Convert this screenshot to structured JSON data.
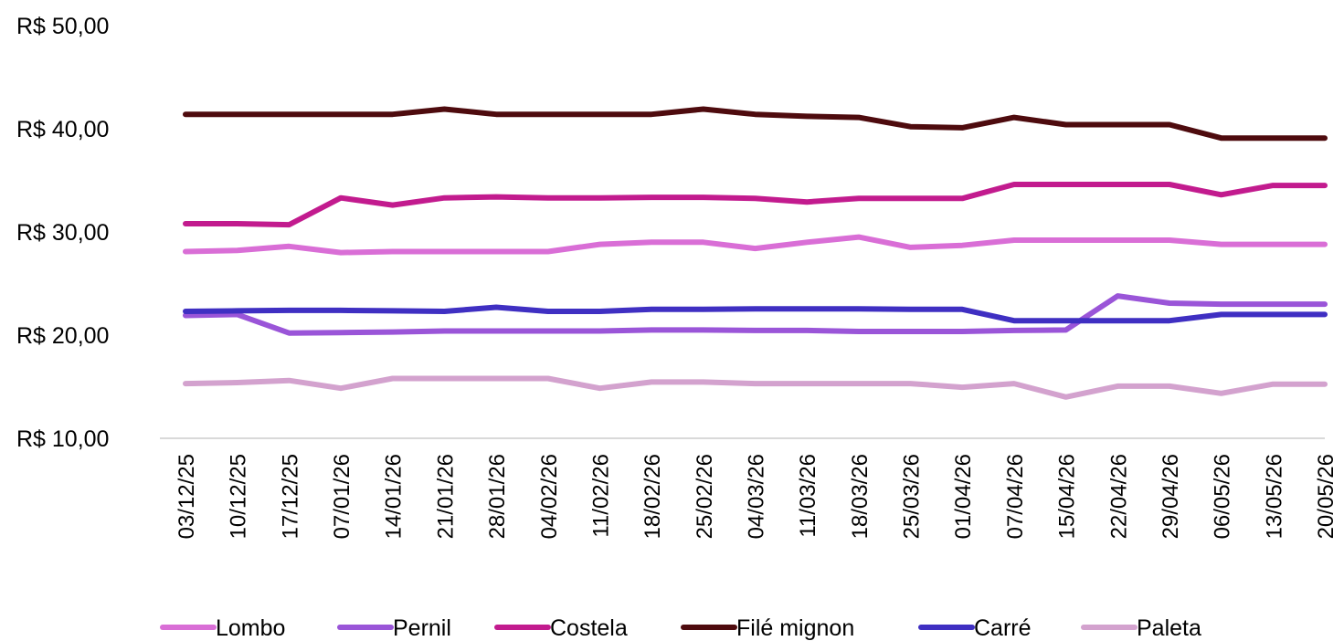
{
  "chart_data": {
    "type": "line",
    "title": "",
    "xlabel": "",
    "ylabel": "",
    "ylim": [
      10,
      50
    ],
    "yticks": [
      "R$ 10,00",
      "R$ 20,00",
      "R$ 30,00",
      "R$ 40,00",
      "R$ 50,00"
    ],
    "ytick_values": [
      10,
      20,
      30,
      40,
      50
    ],
    "grid": false,
    "legend_position": "bottom",
    "categories": [
      "03/12/25",
      "10/12/25",
      "17/12/25",
      "07/01/26",
      "14/01/26",
      "21/01/26",
      "28/01/26",
      "04/02/26",
      "11/02/26",
      "18/02/26",
      "25/02/26",
      "04/03/26",
      "11/03/26",
      "18/03/26",
      "25/03/26",
      "01/04/26",
      "07/04/26",
      "15/04/26",
      "22/04/26",
      "29/04/26",
      "06/05/26",
      "13/05/26",
      "20/05/26"
    ],
    "series": [
      {
        "name": "Lombo",
        "color": "#D96ED6",
        "values": [
          28.1,
          28.2,
          28.6,
          28.0,
          28.1,
          28.1,
          28.1,
          28.1,
          28.8,
          29.0,
          29.0,
          28.4,
          29.0,
          29.5,
          28.5,
          28.7,
          29.2,
          29.2,
          29.2,
          29.2,
          28.8,
          28.8,
          28.8
        ]
      },
      {
        "name": "Pernil",
        "color": "#9A55D8",
        "values": [
          21.9,
          22.0,
          20.2,
          20.25,
          20.3,
          20.4,
          20.4,
          20.4,
          20.4,
          20.5,
          20.5,
          20.45,
          20.45,
          20.35,
          20.35,
          20.35,
          20.45,
          20.5,
          23.8,
          23.1,
          23.0,
          23.0,
          23.0
        ]
      },
      {
        "name": "Costela",
        "color": "#C21B8E",
        "values": [
          30.8,
          30.8,
          30.7,
          33.3,
          32.6,
          33.3,
          33.4,
          33.3,
          33.3,
          33.35,
          33.35,
          33.25,
          32.9,
          33.25,
          33.25,
          33.25,
          34.6,
          34.6,
          34.6,
          34.6,
          33.6,
          34.5,
          34.5
        ]
      },
      {
        "name": "Filé mignon",
        "color": "#4E0B0E",
        "values": [
          41.4,
          41.4,
          41.4,
          41.4,
          41.4,
          41.9,
          41.4,
          41.4,
          41.4,
          41.4,
          41.9,
          41.4,
          41.2,
          41.1,
          40.2,
          40.1,
          41.1,
          40.4,
          40.4,
          40.4,
          39.1,
          39.1,
          39.1
        ]
      },
      {
        "name": "Carré",
        "color": "#3F2FC2",
        "values": [
          22.3,
          22.35,
          22.4,
          22.4,
          22.35,
          22.3,
          22.7,
          22.3,
          22.3,
          22.5,
          22.5,
          22.55,
          22.55,
          22.55,
          22.5,
          22.5,
          21.4,
          21.4,
          21.4,
          21.4,
          22.0,
          22.0,
          22.0
        ]
      },
      {
        "name": "Paleta",
        "color": "#D3A2CE",
        "values": [
          15.3,
          15.4,
          15.6,
          14.85,
          15.8,
          15.8,
          15.8,
          15.8,
          14.85,
          15.45,
          15.45,
          15.3,
          15.3,
          15.3,
          15.3,
          14.95,
          15.3,
          14.0,
          15.05,
          15.05,
          14.35,
          15.25,
          15.25
        ]
      }
    ]
  }
}
